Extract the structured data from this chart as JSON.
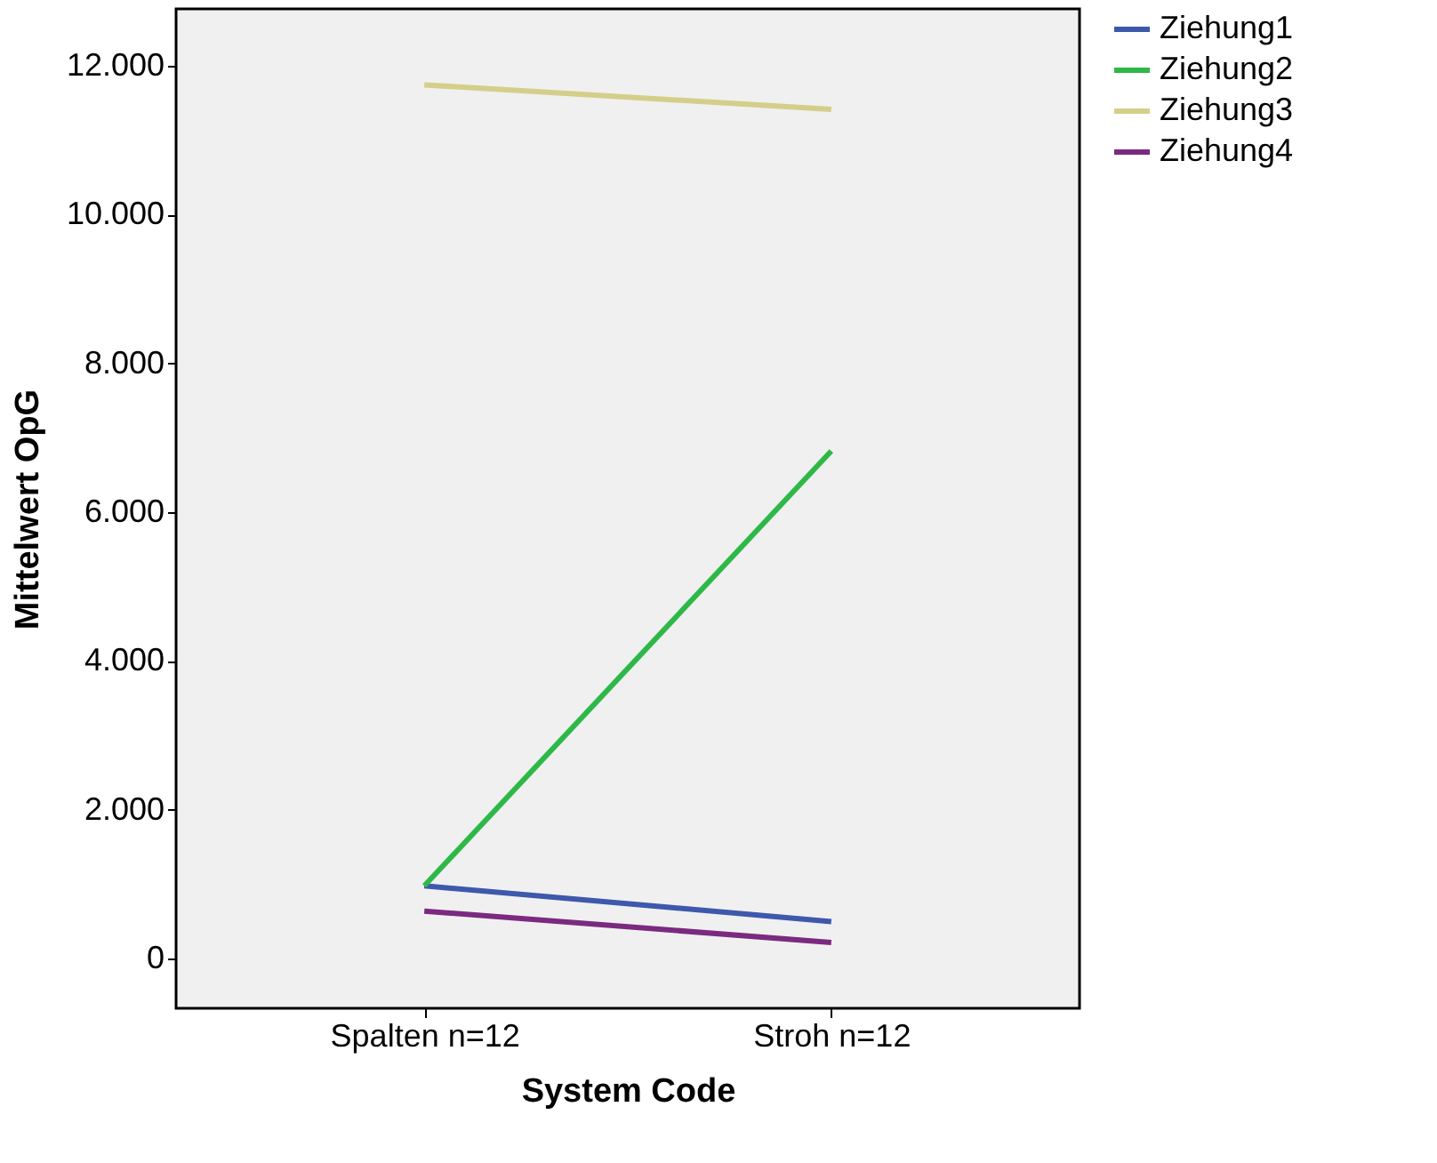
{
  "chart_data": {
    "type": "line",
    "xlabel": "System Code",
    "ylabel": "Mittelwert OpG",
    "categories": [
      "Spalten n=12",
      "Stroh n=12"
    ],
    "series": [
      {
        "name": "Ziehung1",
        "color": "#3e58ac",
        "values": [
          980,
          500
        ]
      },
      {
        "name": "Ziehung2",
        "color": "#2eb848",
        "values": [
          980,
          6820
        ]
      },
      {
        "name": "Ziehung3",
        "color": "#d4ce8a",
        "values": [
          11740,
          11410
        ]
      },
      {
        "name": "Ziehung4",
        "color": "#7b2a80",
        "values": [
          640,
          220
        ]
      }
    ],
    "ylim": [
      -665,
      12760
    ],
    "yticks": [
      {
        "value": 0,
        "label": "0"
      },
      {
        "value": 2000,
        "label": "2.000"
      },
      {
        "value": 4000,
        "label": "4.000"
      },
      {
        "value": 6000,
        "label": "6.000"
      },
      {
        "value": 8000,
        "label": "8.000"
      },
      {
        "value": 10000,
        "label": "10.000"
      },
      {
        "value": 12000,
        "label": "12.000"
      }
    ],
    "grid": false,
    "legend": "top right",
    "marker": "none",
    "line_style": "solid"
  }
}
